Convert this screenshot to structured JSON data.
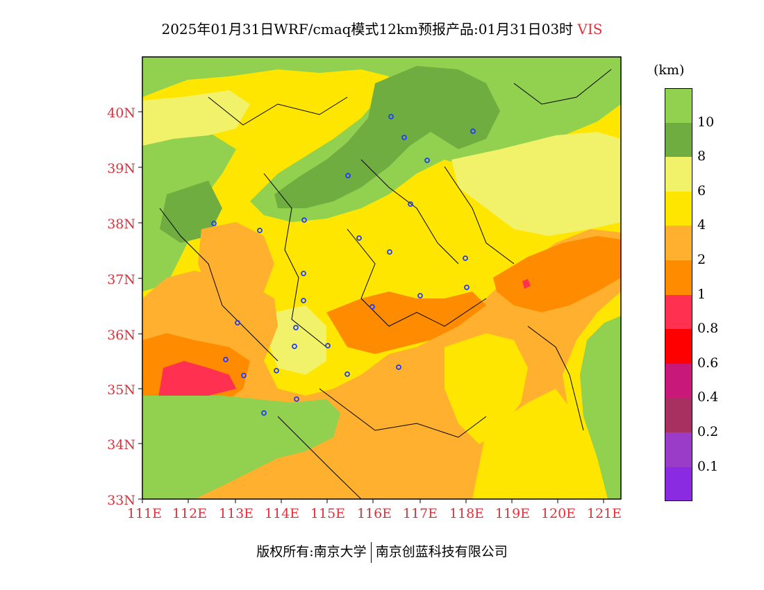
{
  "title": {
    "main": "2025年01月31日WRF/cmaq模式12km预报产品:01月31日03时",
    "variable": "VIS"
  },
  "axes": {
    "lat_labels": [
      "33N",
      "34N",
      "35N",
      "36N",
      "37N",
      "38N",
      "39N",
      "40N"
    ],
    "lon_labels": [
      "111E",
      "112E",
      "113E",
      "114E",
      "115E",
      "116E",
      "117E",
      "118E",
      "119E",
      "120E",
      "121E"
    ],
    "label_color": "#e0303a"
  },
  "legend": {
    "unit": "(km)",
    "levels": [
      "10",
      "8",
      "6",
      "4",
      "2",
      "1",
      "0.8",
      "0.6",
      "0.4",
      "0.2",
      "0.1"
    ],
    "colors": [
      "#92d050",
      "#70ad40",
      "#f2f26a",
      "#ffe600",
      "#ffb02e",
      "#ff8c00",
      "#ff3050",
      "#ff0000",
      "#c8187a",
      "#a83060",
      "#9a3cc8",
      "#8a2be2"
    ]
  },
  "map_colors": {
    "green": "#92d050",
    "dark_green": "#70ad40",
    "light_yellow": "#f2f26a",
    "yellow": "#ffe600",
    "light_orange": "#ffb02e",
    "orange": "#ff8c00",
    "red": "#ff3050",
    "deep_red": "#ff0000",
    "city_marker": "#1e3cff"
  },
  "footer": {
    "copyright": "版权所有:南京大学",
    "company": "南京创蓝科技有限公司"
  }
}
